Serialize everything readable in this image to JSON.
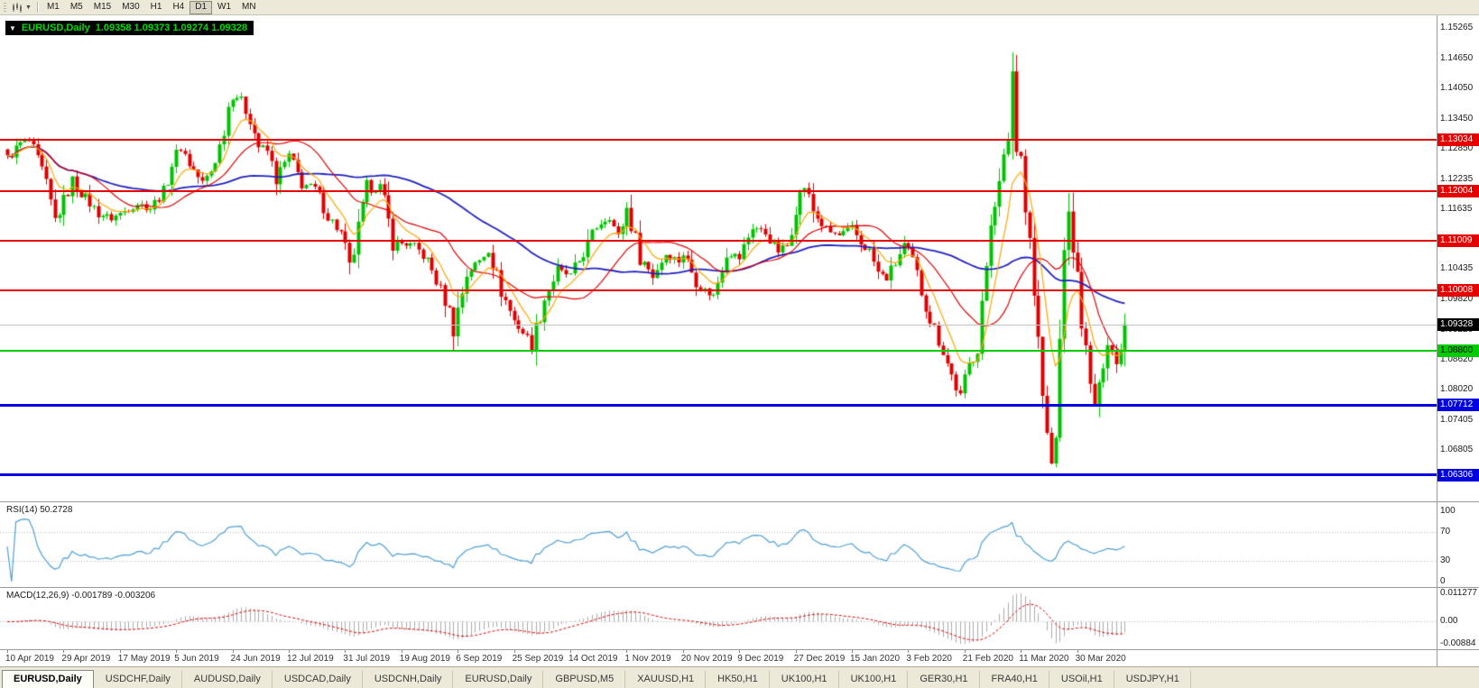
{
  "toolbar": {
    "timeframes": [
      "M1",
      "M5",
      "M15",
      "M30",
      "H1",
      "H4",
      "D1",
      "W1",
      "MN"
    ],
    "active_timeframe": "D1"
  },
  "chart": {
    "symbol_period": "EURUSD,Daily",
    "ohlc_text": "1.09358 1.09373 1.09274 1.09328",
    "colors": {
      "bull": "#00C300",
      "bear": "#E10000",
      "ma_fast": "#FFA500",
      "ma_medium": "#E10000",
      "ma_slow": "#2020C0",
      "rsi": "#4D9FD6",
      "macd_hist": "#ABABAB",
      "macd_signal": "#E10000",
      "level_red": "#E60000",
      "level_green": "#00CC00",
      "level_blue": "#0000E0"
    }
  },
  "price_axis": {
    "labels": [
      "1.15265",
      "1.14650",
      "1.14050",
      "1.13450",
      "1.12850",
      "1.12235",
      "1.11635",
      "1.10435",
      "1.09820",
      "1.09220",
      "1.08620",
      "1.08020",
      "1.07405",
      "1.06805",
      "1.06205"
    ]
  },
  "hlines": [
    {
      "price": "1.13034",
      "color": "#E60000",
      "thickness": 2,
      "text_color": "#FFFFFF"
    },
    {
      "price": "1.12004",
      "color": "#E60000",
      "thickness": 2,
      "text_color": "#FFFFFF"
    },
    {
      "price": "1.11009",
      "color": "#E60000",
      "thickness": 2,
      "text_color": "#FFFFFF"
    },
    {
      "price": "1.10008",
      "color": "#E60000",
      "thickness": 2,
      "text_color": "#FFFFFF"
    },
    {
      "price": "1.08800",
      "color": "#00CC00",
      "thickness": 2,
      "text_color": "#000000"
    },
    {
      "price": "1.07712",
      "color": "#0000E0",
      "thickness": 3,
      "text_color": "#FFFFFF"
    },
    {
      "price": "1.06306",
      "color": "#0000E0",
      "thickness": 3,
      "text_color": "#FFFFFF"
    }
  ],
  "current_price_marker": {
    "price": "1.09328",
    "bg": "#000000",
    "text_color": "#FFFFFF"
  },
  "rsi": {
    "title": "RSI(14) 50.2728",
    "name": "RSI(14)",
    "value": "50.2728",
    "levels": [
      "100",
      "70",
      "30",
      "0"
    ]
  },
  "macd": {
    "title": "MACD(12,26,9) -0.001789 -0.003206",
    "name": "MACD(12,26,9)",
    "main_value": "-0.001789",
    "signal_value": "-0.003206",
    "axis_labels": [
      "0.011277",
      "0.00",
      "-0.00884"
    ]
  },
  "date_axis": {
    "labels": [
      "10 Apr 2019",
      "29 Apr 2019",
      "17 May 2019",
      "5 Jun 2019",
      "24 Jun 2019",
      "12 Jul 2019",
      "31 Jul 2019",
      "19 Aug 2019",
      "6 Sep 2019",
      "25 Sep 2019",
      "14 Oct 2019",
      "1 Nov 2019",
      "20 Nov 2019",
      "9 Dec 2019",
      "27 Dec 2019",
      "15 Jan 2020",
      "3 Feb 2020",
      "21 Feb 2020",
      "11 Mar 2020",
      "30 Mar 2020"
    ]
  },
  "tabs": {
    "active_index": 0,
    "labels": [
      "EURUSD,Daily",
      "USDCHF,Daily",
      "AUDUSD,Daily",
      "USDCAD,Daily",
      "USDCNH,Daily",
      "EURUSD,Daily",
      "GBPUSD,M5",
      "XAUUSD,H1",
      "HK50,H1",
      "UK100,H1",
      "UK100,H1",
      "GER30,H1",
      "FRA40,H1",
      "USOil,H1",
      "USDJPY,H1"
    ],
    "active_label": "EURUSD,Daily"
  },
  "chart_data": {
    "type": "candlestick",
    "symbol": "EURUSD",
    "timeframe": "Daily",
    "last_candle_ohlc": {
      "open": 1.09358,
      "high": 1.09373,
      "low": 1.09274,
      "close": 1.09328
    },
    "visible_date_range": {
      "start": "10 Apr 2019",
      "end": "mid Apr 2020"
    },
    "price_axis_ticks": [
      1.15265,
      1.1465,
      1.1405,
      1.1345,
      1.1285,
      1.12235,
      1.11635,
      1.10435,
      1.0982,
      1.0922,
      1.0862,
      1.0802,
      1.07405,
      1.06805,
      1.06205
    ],
    "horizontal_levels": [
      {
        "price": 1.13034,
        "color": "#E60000"
      },
      {
        "price": 1.12004,
        "color": "#E60000"
      },
      {
        "price": 1.11009,
        "color": "#E60000"
      },
      {
        "price": 1.10008,
        "color": "#E60000"
      },
      {
        "price": 1.088,
        "color": "#00CC00"
      },
      {
        "price": 1.07712,
        "color": "#0000E0"
      },
      {
        "price": 1.06306,
        "color": "#0000E0"
      }
    ],
    "current_price": 1.09328,
    "overlays": [
      {
        "name": "moving-average-fast",
        "color": "#FFA500"
      },
      {
        "name": "moving-average-medium",
        "color": "#E10000"
      },
      {
        "name": "moving-average-slow",
        "color": "#2020C0"
      }
    ],
    "indicators": [
      {
        "name": "RSI",
        "period": 14,
        "current_value": 50.2728,
        "range": [
          0,
          100
        ],
        "levels": [
          30,
          70
        ]
      },
      {
        "name": "MACD",
        "fast": 12,
        "slow": 26,
        "signal": 9,
        "main_value": -0.001789,
        "signal_value": -0.003206,
        "axis_max": 0.011277,
        "axis_min": -0.00884
      }
    ],
    "price_path": [
      [
        0,
        1.1265
      ],
      [
        3,
        1.1295
      ],
      [
        5,
        1.13
      ],
      [
        8,
        1.124
      ],
      [
        11,
        1.114
      ],
      [
        13,
        1.118
      ],
      [
        15,
        1.122
      ],
      [
        18,
        1.1185
      ],
      [
        21,
        1.1155
      ],
      [
        24,
        1.1145
      ],
      [
        27,
        1.116
      ],
      [
        30,
        1.1175
      ],
      [
        33,
        1.1165
      ],
      [
        36,
        1.12
      ],
      [
        38,
        1.1255
      ],
      [
        40,
        1.129
      ],
      [
        42,
        1.1255
      ],
      [
        45,
        1.1215
      ],
      [
        47,
        1.124
      ],
      [
        49,
        1.129
      ],
      [
        51,
        1.137
      ],
      [
        52,
        1.14
      ],
      [
        54,
        1.138
      ],
      [
        56,
        1.1345
      ],
      [
        58,
        1.129
      ],
      [
        60,
        1.128
      ],
      [
        62,
        1.1225
      ],
      [
        65,
        1.127
      ],
      [
        68,
        1.1215
      ],
      [
        71,
        1.1205
      ],
      [
        74,
        1.115
      ],
      [
        77,
        1.1115
      ],
      [
        78,
        1.108
      ],
      [
        79,
        1.104
      ],
      [
        81,
        1.112
      ],
      [
        83,
        1.12
      ],
      [
        86,
        1.121
      ],
      [
        89,
        1.11
      ],
      [
        91,
        1.1095
      ],
      [
        94,
        1.109
      ],
      [
        97,
        1.106
      ],
      [
        100,
        1.1
      ],
      [
        102,
        1.096
      ],
      [
        103,
        1.0925
      ],
      [
        106,
        1.1035
      ],
      [
        109,
        1.106
      ],
      [
        111,
        1.1085
      ],
      [
        114,
        1.1
      ],
      [
        117,
        1.094
      ],
      [
        120,
        1.0905
      ],
      [
        121,
        1.089
      ],
      [
        124,
        1.0985
      ],
      [
        127,
        1.104
      ],
      [
        130,
        1.103
      ],
      [
        133,
        1.1075
      ],
      [
        136,
        1.113
      ],
      [
        139,
        1.115
      ],
      [
        141,
        1.1105
      ],
      [
        143,
        1.1165
      ],
      [
        146,
        1.107
      ],
      [
        149,
        1.103
      ],
      [
        152,
        1.1075
      ],
      [
        155,
        1.106
      ],
      [
        156,
        1.1075
      ],
      [
        159,
        1.102
      ],
      [
        161,
        1.1
      ],
      [
        163,
        1.099
      ],
      [
        166,
        1.108
      ],
      [
        169,
        1.1065
      ],
      [
        172,
        1.113
      ],
      [
        175,
        1.1115
      ],
      [
        178,
        1.108
      ],
      [
        180,
        1.109
      ],
      [
        182,
        1.1175
      ],
      [
        184,
        1.121
      ],
      [
        186,
        1.116
      ],
      [
        189,
        1.112
      ],
      [
        192,
        1.111
      ],
      [
        195,
        1.1125
      ],
      [
        197,
        1.1095
      ],
      [
        199,
        1.108
      ],
      [
        201,
        1.1035
      ],
      [
        203,
        1.1025
      ],
      [
        205,
        1.1055
      ],
      [
        207,
        1.109
      ],
      [
        209,
        1.106
      ],
      [
        211,
        1.1
      ],
      [
        213,
        1.0945
      ],
      [
        216,
        1.088
      ],
      [
        218,
        1.083
      ],
      [
        220,
        1.0785
      ],
      [
        222,
        1.085
      ],
      [
        224,
        1.0885
      ],
      [
        225,
        1.098
      ],
      [
        226,
        1.103
      ],
      [
        227,
        1.1135
      ],
      [
        229,
        1.124
      ],
      [
        231,
        1.129
      ],
      [
        232,
        1.145
      ],
      [
        233,
        1.128
      ],
      [
        234,
        1.127
      ],
      [
        235,
        1.1185
      ],
      [
        236,
        1.111
      ],
      [
        237,
        1.1
      ],
      [
        238,
        1.09
      ],
      [
        239,
        1.079
      ],
      [
        240,
        1.07
      ],
      [
        241,
        1.065
      ],
      [
        242,
        1.07
      ],
      [
        243,
        1.09
      ],
      [
        244,
        1.11
      ],
      [
        245,
        1.114
      ],
      [
        246,
        1.109
      ],
      [
        247,
        1.102
      ],
      [
        248,
        1.095
      ],
      [
        249,
        1.087
      ],
      [
        250,
        1.08
      ],
      [
        251,
        1.0772
      ],
      [
        252,
        1.08
      ],
      [
        253,
        1.087
      ],
      [
        254,
        1.091
      ],
      [
        255,
        1.088
      ],
      [
        256,
        1.085
      ],
      [
        257,
        1.09
      ],
      [
        258,
        1.0933
      ]
    ]
  }
}
